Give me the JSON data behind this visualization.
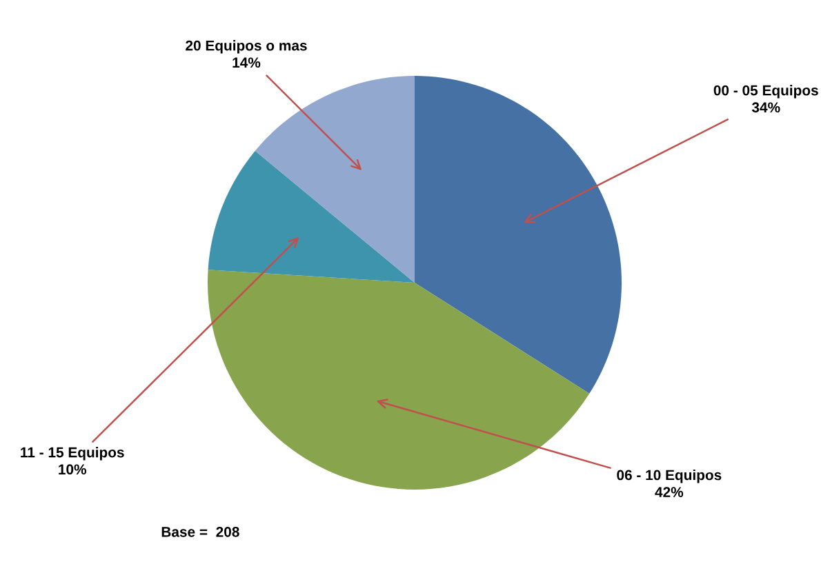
{
  "chart_data": {
    "type": "pie",
    "categories": [
      "00 - 05 Equipos",
      "06 - 10 Equipos",
      "11 - 15 Equipos",
      "20 Equipos o mas"
    ],
    "values": [
      34,
      42,
      10,
      14
    ],
    "colors": [
      "#4571a5",
      "#88a44d",
      "#3f94ad",
      "#93a8cf"
    ],
    "value_labels": [
      "34%",
      "42%",
      "10%",
      "14%"
    ],
    "annotations": [
      "Base =  208"
    ]
  }
}
